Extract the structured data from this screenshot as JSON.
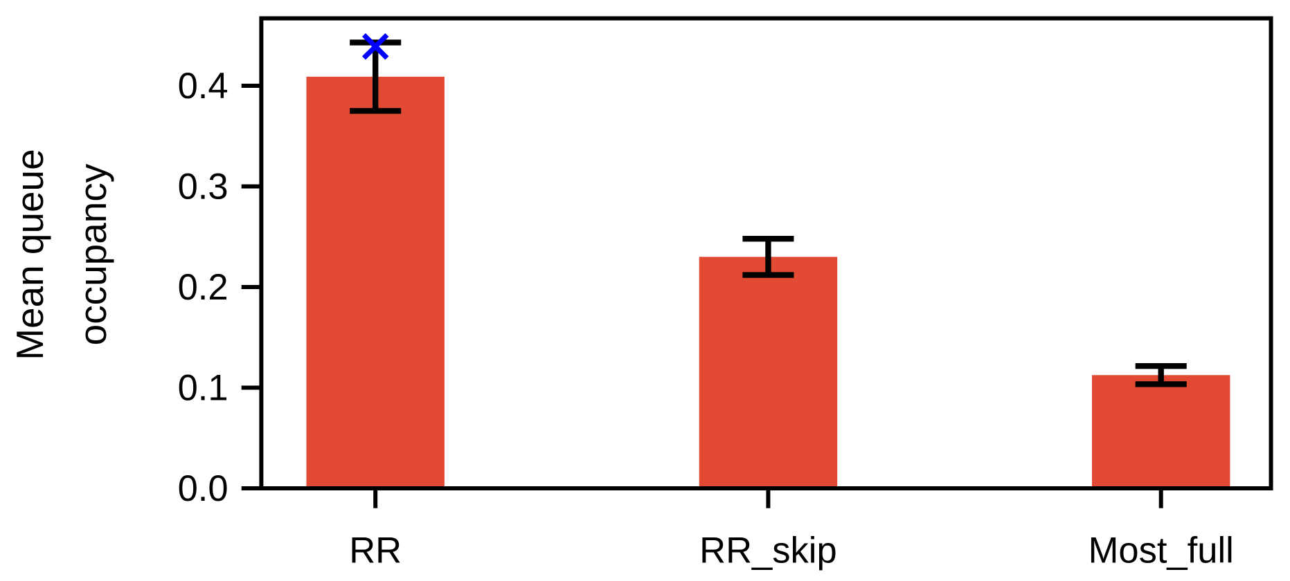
{
  "chart_data": {
    "type": "bar",
    "ylabel": [
      "Mean queue",
      "occupancy"
    ],
    "categories": [
      "RR",
      "RR_skip",
      "Most_full"
    ],
    "values": [
      0.409,
      0.23,
      0.1125
    ],
    "errors": [
      0.034,
      0.018,
      0.009
    ],
    "color": "#e34a33",
    "marker_values": [
      0.439,
      null,
      null
    ],
    "marker_color": "#0000ff",
    "ylim": [
      0,
      0.467
    ],
    "yticks": [
      {
        "value": 0,
        "label": "0.0"
      },
      {
        "value": 0.1,
        "label": "0.1"
      },
      {
        "value": 0.2,
        "label": "0.2"
      },
      {
        "value": 0.3,
        "label": "0.3"
      },
      {
        "value": 0.4,
        "label": "0.4"
      }
    ]
  }
}
